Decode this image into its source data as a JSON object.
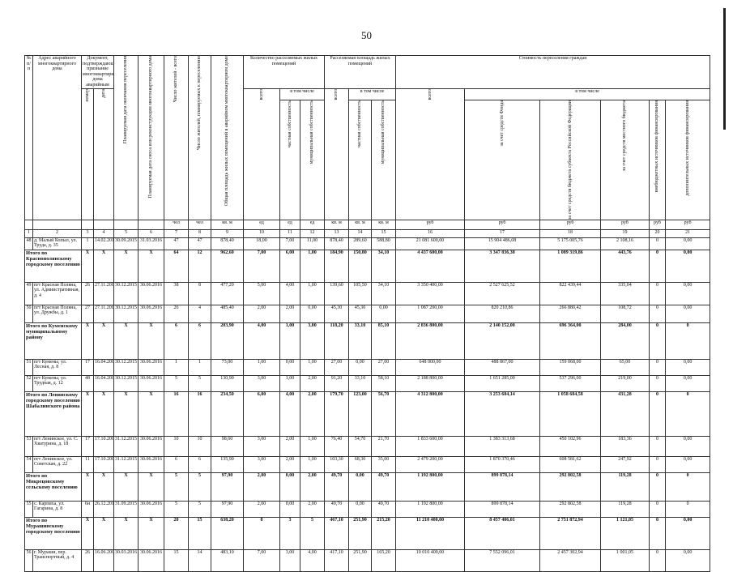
{
  "page_number": "50",
  "header": {
    "no": "№ п/п",
    "address": "Адрес аварийного многоквартирного дома",
    "document": "Документ, подтверждающий признание многоквартирного дома аварийным",
    "doc_number": "номер",
    "doc_date": "дата",
    "resettle_end": "Планируемая дата окончания переселения",
    "demolish": "Планируемая дата сноса или реконструкции многоквартирного дома",
    "residents_total": "Число жителей - всего",
    "residents_planned": "Число жителей, планируемых к переселению",
    "area_total": "Общая площадь жилых помещений в аварийном многоквартирном доме",
    "rooms": "Количество расселяемых жилых помещений",
    "area": "Расселяемая площадь жилых помещений",
    "cost": "Стоимость переселения граждан",
    "incl": "в том числе",
    "total": "всего",
    "private": "частная собственность",
    "municipal": "муниципальная собственность",
    "fund": "за счет средств Фонда",
    "regional": "за счет средств бюджета субъекта Российской Федерации",
    "local": "за счет средств местного бюджета",
    "extra_budget": "внебюджетных источников финансирования",
    "additional": "дополнительных источников финансирования"
  },
  "units": [
    "чел",
    "чел",
    "кв. м",
    "ед",
    "ед",
    "ед",
    "кв. м",
    "кв. м",
    "кв. м",
    "руб",
    "руб",
    "руб",
    "руб",
    "руб",
    "руб"
  ],
  "column_numbers": [
    1,
    2,
    3,
    4,
    5,
    6,
    7,
    8,
    9,
    10,
    11,
    12,
    13,
    14,
    15,
    16,
    17,
    18,
    19,
    20,
    21
  ],
  "rows": [
    [
      "48",
      "д. Малый Копыл, ул. Труда, д. 35",
      "1",
      "14.02.2011",
      "30.09.2015",
      "31.03.2016",
      "47",
      "47",
      "878,40",
      "18,00",
      "7,00",
      "11,00",
      "878,40",
      "289,60",
      "588,80",
      "21 081 600,00",
      "15 904 486,08",
      "5 175 005,76",
      "2 108,16",
      "0",
      "0,00"
    ],
    [
      "Итого по Краснополянскому городскому поселению",
      "X",
      "X",
      "X",
      "X",
      "64",
      "12",
      "962,60",
      "7,00",
      "6,00",
      "1,00",
      "184,90",
      "150,80",
      "34,10",
      "4 437 600,00",
      "3 347 836,38",
      "1 089 319,86",
      "443,76",
      "0",
      "0,00"
    ],
    [
      "49",
      "пгт Красная Поляна, ул. Адмиистративная, д. 4",
      "26",
      "27.11.2006",
      "30.12.2015",
      "30.06.2016",
      "38",
      "8",
      "477,20",
      "5,00",
      "4,00",
      "1,00",
      "139,60",
      "105,50",
      "34,10",
      "3 350 400,00",
      "2 527 625,52",
      "822 439,44",
      "335,04",
      "0",
      "0,00"
    ],
    [
      "50",
      "пгт Красная Поляна, ул. Дружбы, д. 1",
      "27",
      "27.11.2006",
      "30.12.2015",
      "30.06.2016",
      "26",
      "4",
      "485,40",
      "2,00",
      "2,00",
      "0,00",
      "45,30",
      "45,30",
      "0,00",
      "1 087 200,00",
      "820 210,86",
      "266 880,42",
      "108,72",
      "0",
      "0,00"
    ],
    [
      "Итого по Куменскому муниципальному району",
      "X",
      "X",
      "X",
      "X",
      "6",
      "6",
      "203,90",
      "4,00",
      "1,00",
      "3,00",
      "118,20",
      "33,10",
      "85,10",
      "2 836 800,00",
      "2 140 152,00",
      "696 364,00",
      "284,00",
      "0",
      "0"
    ],
    [
      "51",
      "пгт Кумены, ул. Лесная, д. 8",
      "17",
      "16.04.2007",
      "30.12.2015",
      "30.06.2016",
      "1",
      "1",
      "73,00",
      "1,00",
      "0,00",
      "1,00",
      "27,00",
      "0,00",
      "27,00",
      "648 000,00",
      "488 867,00",
      "159 068,00",
      "65,00",
      "0",
      "0,00"
    ],
    [
      "52",
      "пгт Кумены, ул. Трудная, д. 12",
      "48",
      "16.04.2007",
      "30.12.2015",
      "30.06.2016",
      "5",
      "5",
      "130,90",
      "3,00",
      "1,00",
      "2,00",
      "91,20",
      "33,10",
      "58,10",
      "2 188 800,00",
      "1 651 285,00",
      "537 296,00",
      "219,00",
      "0",
      "0,00"
    ],
    [
      "Итого по Ленинскому городскому поселению Шабалинского района",
      "X",
      "X",
      "X",
      "X",
      "16",
      "16",
      "234,50",
      "6,00",
      "4,00",
      "2,00",
      "179,70",
      "123,00",
      "56,70",
      "4 312 800,00",
      "3 253 684,14",
      "1 058 684,58",
      "431,28",
      "0",
      "0"
    ],
    [
      "53",
      "пгт Ленинское, ул. С. Хватурина, д. 18",
      "17",
      "17.10.2006",
      "31.12.2015",
      "30.06.2016",
      "10",
      "10",
      "98,60",
      "3,00",
      "2,00",
      "1,00",
      "76,40",
      "54,70",
      "21,70",
      "1 833 600,00",
      "1 383 313,68",
      "450 102,96",
      "183,36",
      "0",
      "0,00"
    ],
    [
      "54",
      "пгт Ленинское, ул. Советская, д. 22",
      "11",
      "17.10.2006",
      "31.12.2015",
      "30.06.2016",
      "6",
      "6",
      "135,90",
      "3,00",
      "2,00",
      "1,00",
      "103,30",
      "68,30",
      "35,00",
      "2 479 200,00",
      "1 870 370,46",
      "608 581,62",
      "247,92",
      "0",
      "0,00"
    ],
    [
      "Итого по Мокрецовскому сельскому поселению",
      "X",
      "X",
      "X",
      "X",
      "5",
      "5",
      "97,90",
      "2,00",
      "0,00",
      "2,00",
      "49,70",
      "0,00",
      "49,70",
      "1 192 800,00",
      "899 878,14",
      "292 802,58",
      "119,28",
      "0",
      "0"
    ],
    [
      "55",
      "с. Карпиха, ул. Гагарина, д. 8",
      "6н",
      "26.12.2011",
      "31.09.2015",
      "30.06.2016",
      "5",
      "5",
      "97,90",
      "2,00",
      "0,00",
      "2,00",
      "49,70",
      "0,00",
      "49,70",
      "1 192 800,00",
      "899 878,14",
      "292 802,58",
      "119,28",
      "0",
      "0"
    ],
    [
      "Итого по Мурашинскому городскому поселению",
      "X",
      "X",
      "X",
      "X",
      "20",
      "15",
      "638,20",
      "8",
      "3",
      "5",
      "467,10",
      "251,90",
      "215,20",
      "11 210 400,00",
      "8 457 406,01",
      "2 751 872,94",
      "1 121,05",
      "0",
      "0,00"
    ],
    [
      "56",
      "г. Мураши, пер. Транспортный, д. 4",
      "26",
      "16.06.2008",
      "30.03.2016",
      "30.06.2016",
      "15",
      "14",
      "483,10",
      "7,00",
      "3,00",
      "4,00",
      "417,10",
      "251,90",
      "165,20",
      "10 010 400,00",
      "7 552 096,01",
      "2 457 302,94",
      "1 001,05",
      "0",
      "0,00"
    ]
  ]
}
